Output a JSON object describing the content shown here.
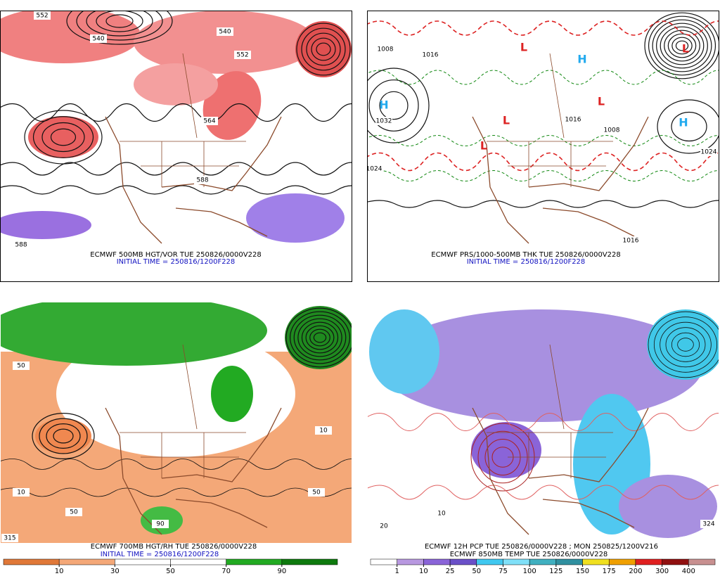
{
  "panels": [
    {
      "caption": "ECMWF 500MB HGT/VOR TUE 250826/0000V228",
      "initial": "INITIAL TIME = 250816/1200F228",
      "labels": [
        "552",
        "540",
        "540",
        "552",
        "564",
        "588",
        "588"
      ]
    },
    {
      "caption": "ECMWF PRS/1000-500MB THK TUE 250826/0000V228",
      "initial": "INITIAL TIME = 250816/1200F228",
      "labels": [
        "1008",
        "1016",
        "1032",
        "1024",
        "1016",
        "1008",
        "1024",
        "1016"
      ],
      "highs": [
        "H",
        "H",
        "H"
      ],
      "lows": [
        "L",
        "L",
        "L",
        "L",
        "L"
      ]
    },
    {
      "caption": "ECMWF 700MB HGT/RH TUE 250826/0000V228",
      "initial": "INITIAL TIME = 250816/1200F228",
      "labels": [
        "50",
        "10",
        "50",
        "10",
        "90",
        "50",
        "315"
      ]
    },
    {
      "caption": "ECMWF 12H PCP TUE 250826/0000V228 ; MON 250825/1200V216",
      "initial": "ECMWF 850MB TEMP TUE 250826/0000V228",
      "labels": [
        "20",
        "10",
        "324"
      ]
    }
  ],
  "colorbars": [
    {
      "ticks": [
        10,
        30,
        50,
        70,
        90
      ],
      "colors": [
        "#e07838",
        "#f4a878",
        "#ffffff",
        "#ffffff",
        "#22aa22",
        "#0e7a0e"
      ]
    },
    {
      "ticks": [
        1,
        10,
        25,
        50,
        75,
        100,
        125,
        150,
        175,
        200,
        300,
        400
      ],
      "colors": [
        "#ffffff",
        "#b898e0",
        "#8a64d8",
        "#6a50c8",
        "#40c8f0",
        "#80e0f8",
        "#40b0c0",
        "#3090a0",
        "#f0e020",
        "#f0a000",
        "#e02020",
        "#901010",
        "#c89090"
      ]
    }
  ]
}
